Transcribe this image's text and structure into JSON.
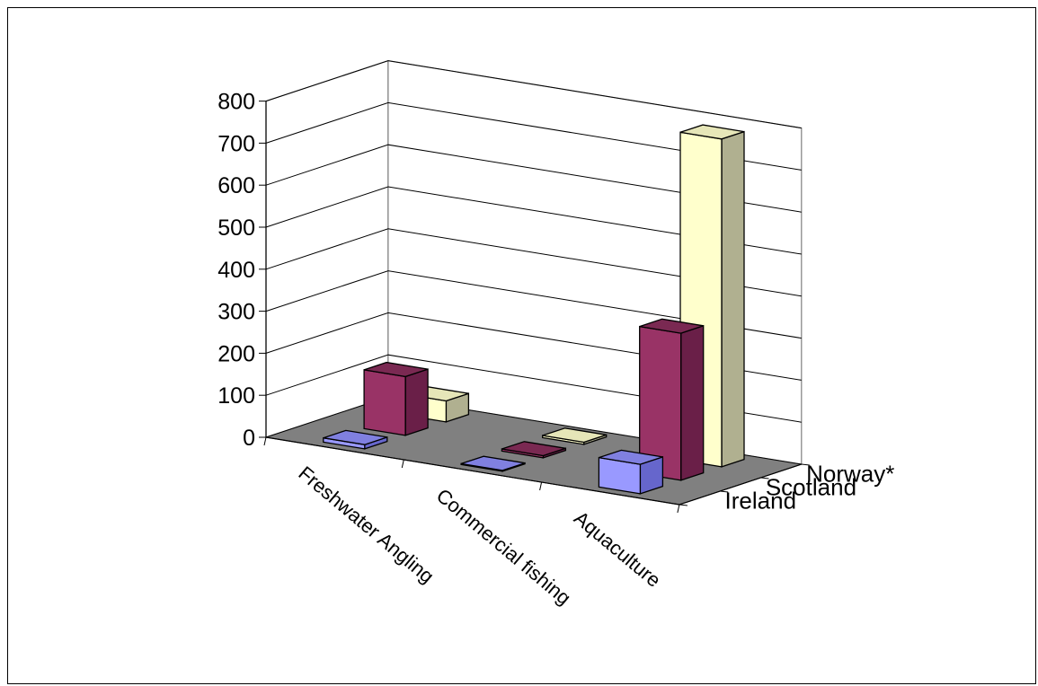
{
  "chart_data": {
    "type": "bar",
    "subtype": "3d-column",
    "categories": [
      "Freshwater Angling",
      "Commercial fishing",
      "Aquaculture"
    ],
    "series": [
      {
        "name": "Ireland",
        "values": [
          10,
          2,
          70
        ],
        "color": "#9999ff",
        "top_color": "#8080e0",
        "side_color": "#6666cc"
      },
      {
        "name": "Scotland",
        "values": [
          140,
          5,
          350
        ],
        "color": "#993366",
        "top_color": "#7a2952",
        "side_color": "#6a1f48"
      },
      {
        "name": "Norway*",
        "values": [
          50,
          5,
          780
        ],
        "color": "#ffffcc",
        "top_color": "#e6e6b8",
        "side_color": "#b0b090"
      }
    ],
    "y_ticks": [
      "0",
      "100",
      "200",
      "300",
      "400",
      "500",
      "600",
      "700",
      "800"
    ],
    "ylim": [
      0,
      800
    ],
    "grid": true,
    "floor_color": "#808080",
    "title": "",
    "xlabel": "",
    "ylabel": ""
  }
}
